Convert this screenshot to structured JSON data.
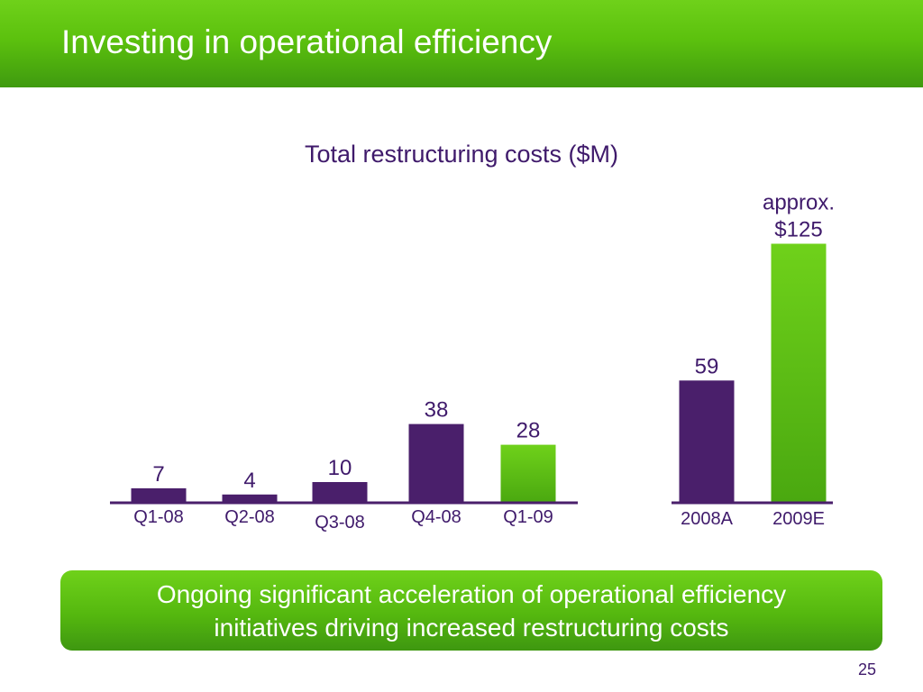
{
  "slide": {
    "title": "Investing in operational efficiency",
    "page_number": "25"
  },
  "colors": {
    "purple": "#4a1f6b",
    "green": "#5cc20e",
    "green_dark": "#3f9a0f",
    "text": "#3f1a6b"
  },
  "callout": {
    "line1": "Ongoing significant acceleration of operational efficiency",
    "line2": "initiatives driving increased restructuring costs"
  },
  "chart_data": {
    "type": "bar",
    "title": "Total restructuring costs ($M)",
    "xlabel": "",
    "ylabel": "",
    "grid": false,
    "groups": [
      {
        "categories": [
          "Q1-08",
          "Q2-08",
          "Q3-08",
          "Q4-08",
          "Q1-09"
        ],
        "values": [
          7,
          4,
          10,
          38,
          28
        ],
        "labels": [
          "7",
          "4",
          "10",
          "38",
          "28"
        ],
        "fills": [
          "purple",
          "purple",
          "purple",
          "purple",
          "green"
        ]
      },
      {
        "categories": [
          "2008A",
          "2009E"
        ],
        "values": [
          59,
          125
        ],
        "labels": [
          "59",
          "approx.\n$125"
        ],
        "fills": [
          "purple",
          "green"
        ]
      }
    ]
  }
}
